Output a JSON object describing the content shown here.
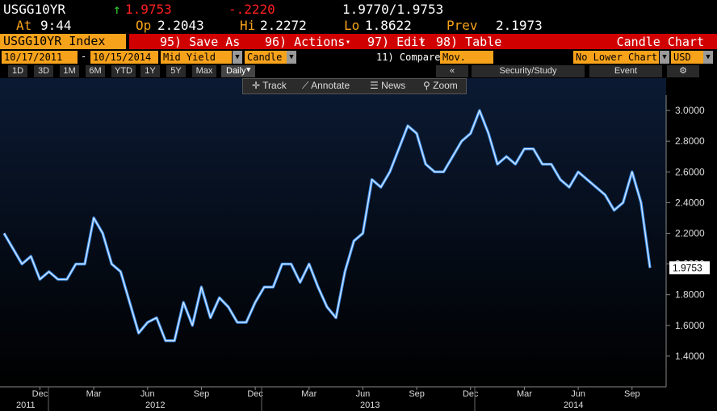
{
  "ui": {
    "quote": {
      "ticker": "USGG10YR",
      "arrow": "↑",
      "last": "1.9753",
      "change": "-.2220",
      "bid_ask": "1.9770/1.9753"
    },
    "stats": [
      {
        "label": "At",
        "value": "9:44"
      },
      {
        "label": "Op",
        "value": "2.2043"
      },
      {
        "label": "Hi",
        "value": "2.2272"
      },
      {
        "label": "Lo",
        "value": "1.8622"
      },
      {
        "label": "Prev",
        "value": "2.1973"
      }
    ],
    "security": "USGG10YR Index",
    "menu": [
      "95) Save As",
      "96) Actions",
      "97) Edit",
      "98) Table"
    ],
    "chart_kind": "Candle Chart",
    "start_date": "10/17/2011",
    "end_date": "10/15/2014",
    "field": "Mid Yield",
    "style": "Candle",
    "compare": "11) Compare",
    "overlay": "Mov. Avgs",
    "lower": "No Lower Chart",
    "currency": "USD",
    "ranges": [
      "1D",
      "3D",
      "1M",
      "6M",
      "YTD",
      "1Y",
      "5Y",
      "Max"
    ],
    "period": "Daily",
    "links": [
      "Security/Study",
      "Event"
    ],
    "tools": [
      "Track",
      "Annotate",
      "News",
      "Zoom"
    ]
  },
  "chart_data": {
    "type": "line",
    "color": "#dbe9ff",
    "categories": [
      null,
      null,
      null,
      null,
      "Dec",
      null,
      null,
      null,
      null,
      null,
      "Mar",
      null,
      null,
      null,
      null,
      null,
      "Jun",
      null,
      null,
      null,
      null,
      null,
      "Sep",
      null,
      null,
      null,
      null,
      null,
      "Dec",
      null,
      null,
      null,
      null,
      null,
      "Mar",
      null,
      null,
      null,
      null,
      null,
      "Jun",
      null,
      null,
      null,
      null,
      null,
      "Sep",
      null,
      null,
      null,
      null,
      null,
      "Dec",
      null,
      null,
      null,
      null,
      null,
      "Mar",
      null,
      null,
      null,
      null,
      null,
      "Jun",
      null,
      null,
      null,
      null,
      null,
      "Sep",
      null,
      null
    ],
    "years": [
      "2011",
      "2012",
      "2013",
      "2014"
    ],
    "values": [
      2.2,
      2.1,
      2.0,
      2.05,
      1.9,
      1.95,
      1.9,
      1.9,
      2.0,
      2.0,
      2.3,
      2.2,
      2.0,
      1.95,
      1.75,
      1.55,
      1.62,
      1.65,
      1.5,
      1.5,
      1.75,
      1.6,
      1.85,
      1.65,
      1.78,
      1.72,
      1.62,
      1.62,
      1.75,
      1.85,
      1.85,
      2.0,
      2.0,
      1.88,
      2.0,
      1.85,
      1.72,
      1.65,
      1.95,
      2.15,
      2.2,
      2.55,
      2.5,
      2.6,
      2.75,
      2.9,
      2.85,
      2.65,
      2.6,
      2.6,
      2.7,
      2.8,
      2.85,
      3.0,
      2.85,
      2.65,
      2.7,
      2.65,
      2.75,
      2.75,
      2.65,
      2.65,
      2.55,
      2.5,
      2.6,
      2.55,
      2.5,
      2.45,
      2.35,
      2.4,
      2.6,
      2.4,
      1.9753
    ],
    "ylim": [
      1.2,
      3.1
    ],
    "yticks": [
      {
        "value": 1.4,
        "label": "1.4000"
      },
      {
        "value": 1.6,
        "label": "1.6000"
      },
      {
        "value": 1.8,
        "label": "1.8000"
      },
      {
        "value": 2.0,
        "label": "2.0000"
      },
      {
        "value": 2.2,
        "label": "2.2000"
      },
      {
        "value": 2.4,
        "label": "2.4000"
      },
      {
        "value": 2.6,
        "label": "2.6000"
      },
      {
        "value": 2.8,
        "label": "2.8000"
      },
      {
        "value": 3.0,
        "label": "3.0000"
      }
    ],
    "grid": false
  }
}
